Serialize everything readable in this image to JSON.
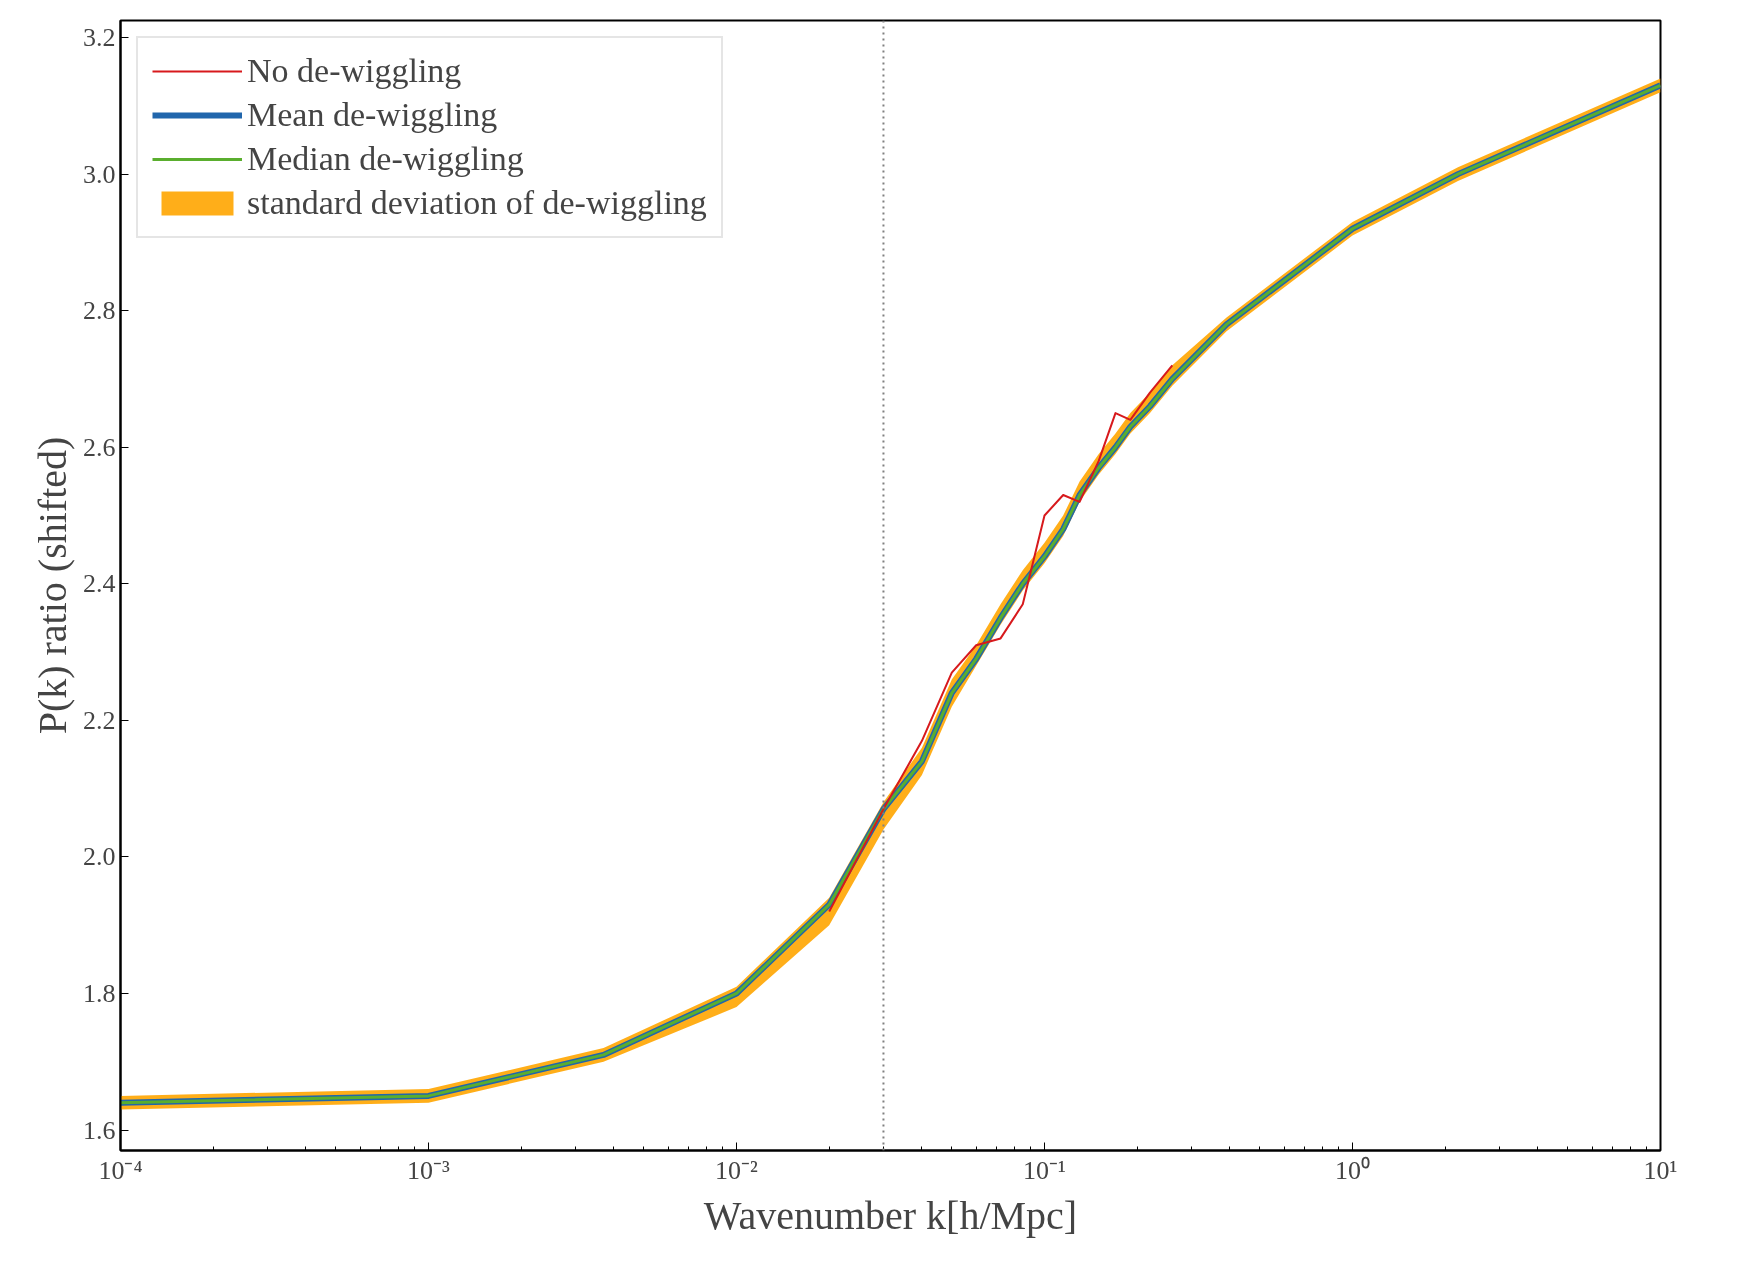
{
  "chart_data": {
    "type": "line",
    "xlabel": "Wavenumber k[h/Mpc]",
    "ylabel": "P(k) ratio (shifted)",
    "log": "x",
    "xlim": [
      0.0001,
      10
    ],
    "ylim": [
      1.57,
      3.225
    ],
    "xticks": [
      {
        "value": 0.0001,
        "label": "10⁻⁴"
      },
      {
        "value": 0.001,
        "label": "10⁻³"
      },
      {
        "value": 0.01,
        "label": "10⁻²"
      },
      {
        "value": 0.1,
        "label": "10⁻¹"
      },
      {
        "value": 1,
        "label": "10⁰"
      },
      {
        "value": 10,
        "label": "10¹"
      }
    ],
    "yticks": [
      1.6,
      1.8,
      {
        "value": 2.0,
        "label": "2.0"
      },
      2.2,
      2.4,
      2.6,
      2.8,
      {
        "value": 3.0,
        "label": "3.0"
      },
      3.2
    ],
    "x": [
      0.0001,
      0.001,
      0.0037,
      0.01,
      0.02,
      0.03,
      0.04,
      0.05,
      0.06,
      0.072,
      0.085,
      0.1,
      0.115,
      0.13,
      0.15,
      0.17,
      0.19,
      0.22,
      0.26,
      0.39,
      1,
      2.2,
      10
    ],
    "series": [
      {
        "name": "No de-wiggling",
        "color": "#d7191c",
        "values": [
          null,
          null,
          null,
          null,
          1.92,
          2.07,
          2.17,
          2.27,
          2.31,
          2.32,
          2.37,
          2.5,
          2.53,
          2.52,
          2.58,
          2.65,
          2.64,
          2.68,
          2.72,
          null,
          null,
          null,
          null
        ]
      },
      {
        "name": "Mean de-wiggling",
        "color": "#2166ac",
        "values": [
          1.64,
          1.65,
          1.71,
          1.8,
          1.93,
          2.07,
          2.14,
          2.24,
          2.29,
          2.35,
          2.4,
          2.44,
          2.48,
          2.53,
          2.57,
          2.6,
          2.63,
          2.66,
          2.7,
          2.78,
          2.92,
          3.0,
          3.13
        ]
      },
      {
        "name": "Median de-wiggling",
        "color": "#5aae2e",
        "values": [
          1.64,
          1.65,
          1.71,
          1.8,
          1.93,
          2.07,
          2.14,
          2.24,
          2.29,
          2.35,
          2.4,
          2.44,
          2.48,
          2.53,
          2.57,
          2.6,
          2.63,
          2.66,
          2.7,
          2.78,
          2.92,
          3.0,
          3.13
        ],
        "lower": [
          1.63,
          1.64,
          1.7,
          1.78,
          1.9,
          2.04,
          2.12,
          2.22,
          2.28,
          2.34,
          2.39,
          2.43,
          2.47,
          2.52,
          2.56,
          2.59,
          2.62,
          2.65,
          2.69,
          2.77,
          2.91,
          2.99,
          3.12
        ],
        "upper": [
          1.65,
          1.66,
          1.72,
          1.81,
          1.94,
          2.08,
          2.16,
          2.26,
          2.31,
          2.37,
          2.42,
          2.46,
          2.5,
          2.55,
          2.59,
          2.62,
          2.65,
          2.68,
          2.72,
          2.79,
          2.93,
          3.01,
          3.14
        ]
      },
      {
        "name": "standard deviation of de-wiggling",
        "type": "area",
        "color": "#ffa500",
        "values": [
          null,
          null,
          null,
          null,
          null,
          null,
          null,
          null,
          null,
          null,
          null,
          null,
          null,
          null,
          null,
          null,
          null,
          null,
          null,
          null,
          null,
          null,
          null
        ]
      }
    ],
    "ref_lines": [
      {
        "axis": "x",
        "value": 0.03,
        "color": "#808080",
        "line_style": "dotted"
      }
    ],
    "grid": false,
    "legend": "top left",
    "marker": "none",
    "line_style": "solid"
  }
}
